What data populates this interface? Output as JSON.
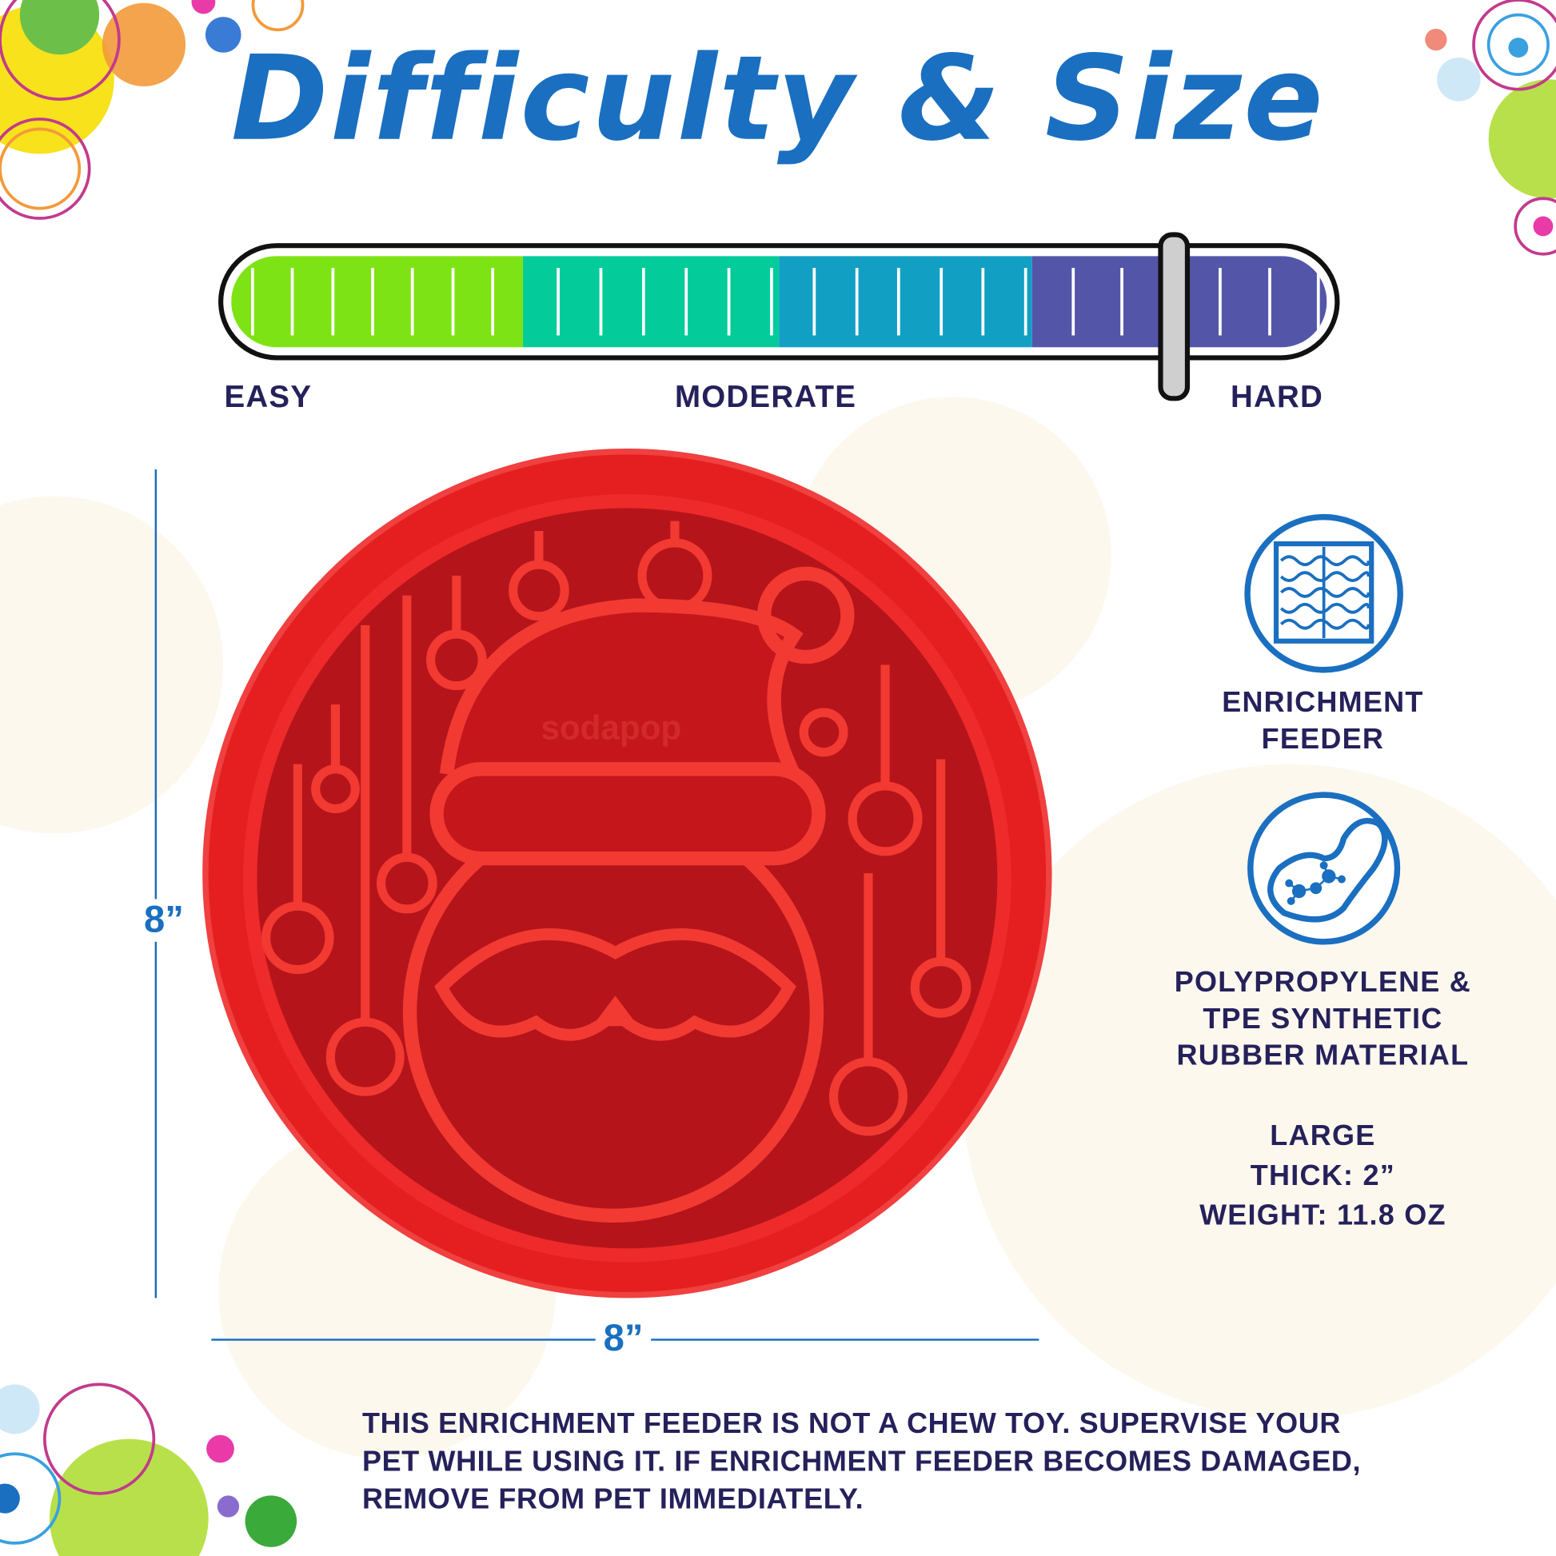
{
  "title": "Difficulty & Size",
  "difficulty": {
    "labels": {
      "easy": "EASY",
      "moderate": "MODERATE",
      "hard": "HARD"
    },
    "level_fraction": 0.86,
    "segment_colors": [
      "#7ee314",
      "#03cc9a",
      "#129fc4",
      "#5356a8"
    ]
  },
  "dimensions": {
    "height": "8”",
    "width": "8”"
  },
  "product": {
    "brand_embossed": "sodapop",
    "color": "#e01e1e"
  },
  "features": [
    {
      "icon": "puzzle-icon",
      "lines": [
        "ENRICHMENT",
        "FEEDER"
      ]
    },
    {
      "icon": "material-molecule-icon",
      "lines": [
        "POLYPROPYLENE  &",
        "TPE SYNTHETIC",
        "RUBBER MATERIAL"
      ]
    }
  ],
  "specs": [
    "LARGE",
    "THICK: 2”",
    "WEIGHT: 11.8 OZ"
  ],
  "warning": [
    "THIS ENRICHMENT FEEDER IS NOT A CHEW TOY. SUPERVISE YOUR",
    "PET WHILE USING IT. IF ENRICHMENT FEEDER BECOMES DAMAGED,",
    "REMOVE FROM PET IMMEDIATELY."
  ],
  "colors": {
    "title": "#1a6fc0",
    "text": "#25215a",
    "accent": "#1a6fc0"
  }
}
